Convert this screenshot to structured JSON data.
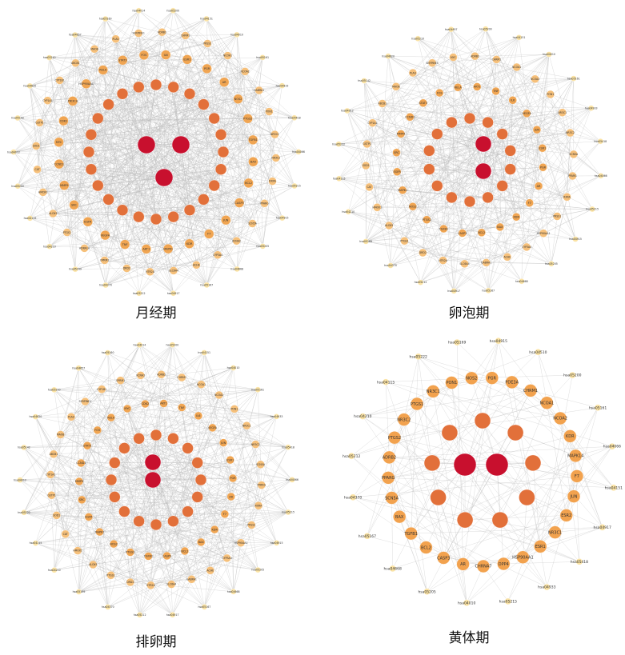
{
  "panels": [
    {
      "id": "menstrual",
      "caption": "月经期",
      "core_labels": [
        "",
        "",
        ""
      ],
      "mid_labels": [
        "",
        "",
        "",
        "",
        "",
        "",
        "",
        "",
        "",
        "",
        "",
        "",
        "",
        "",
        "",
        "",
        "",
        "",
        "",
        "",
        "",
        "",
        "",
        ""
      ],
      "ring2_labels": [
        "IL6",
        "ESR1",
        "PGR",
        "AR",
        "NOS2",
        "PTGS2",
        "TGFB1",
        "BAX",
        "BCL2",
        "CASP3",
        "JUN",
        "F7",
        "KDR",
        "MAPK1",
        "AKT1",
        "TNF",
        "VEGFA",
        "EGFR",
        "SRC",
        "MMP9",
        "CCND1",
        "MYC",
        "CDK2",
        "PIK3CA",
        "HSP90AA1",
        "RELA",
        "STAT3",
        "FOS"
      ],
      "ring3_labels": [
        "ADRB2",
        "CHRM1",
        "PRSS1",
        "NCOA1",
        "NCOA2",
        "GABRA1",
        "PON1",
        "NR3C1",
        "NR3C2",
        "RXRA",
        "PPARG",
        "SCN5A",
        "KCNH2",
        "CYP3A4",
        "ACHE",
        "SLC6A4",
        "HTR2A",
        "DRD2",
        "OPRM1",
        "ADRA1A",
        "PTGS1",
        "ALOX5",
        "HMOX1",
        "CAT",
        "SOD1",
        "GSTP1",
        "CYP1A1",
        "CYP1B1",
        "ABCB1",
        "MAOB",
        "PLAU",
        "SERPINE1"
      ],
      "outer_labels": [
        "hsa05200",
        "hsa04151",
        "hsa04010",
        "hsa05161",
        "hsa04933",
        "hsa05418",
        "hsa04066",
        "hsa05215",
        "hsa04915",
        "hsa05205",
        "hsa04668",
        "hsa05167",
        "hsa04917",
        "hsa05212",
        "hsa04370",
        "hsa05169",
        "hsa04210",
        "hsa04115",
        "hsa05222",
        "hsa04012",
        "hsa05142",
        "hsa04620",
        "hsa05210",
        "hsa04657",
        "hsa05160",
        "hsa04014"
      ]
    },
    {
      "id": "follicular",
      "caption": "卵泡期",
      "core_labels": [
        "",
        ""
      ],
      "mid_labels": [
        "",
        "",
        "",
        "",
        "",
        "",
        "",
        "",
        "",
        "",
        "",
        "",
        "",
        ""
      ],
      "ring2_labels": [
        "AKT1",
        "TNF",
        "IL6",
        "VEGFA",
        "JUN",
        "ESR1",
        "PGR",
        "AR",
        "F7",
        "KDR",
        "BAX",
        "BCL2",
        "CASP3",
        "TGFB1",
        "PTGS2",
        "NOS2",
        "MAPK1",
        "EGFR",
        "SRC",
        "MMP9",
        "CCND1",
        "STAT3",
        "FOS",
        "RELA"
      ],
      "ring3_labels": [
        "ADRB2",
        "CHRM1",
        "NCOA1",
        "NCOA2",
        "PON1",
        "NR3C1",
        "NR3C2",
        "SCN5A",
        "PPARG",
        "RXRA",
        "PRSS1",
        "HSP90AA1",
        "CYP3A4",
        "ACHE",
        "GABRA1",
        "SLC6A4",
        "HTR2A",
        "DRD2",
        "PTGS1",
        "ALOX5",
        "HMOX1",
        "CAT",
        "SOD1",
        "GSTP1",
        "CYP1A1",
        "ABCB1",
        "MAOB",
        "PLAU",
        "SERPINE1",
        "MYC"
      ],
      "outer_labels": [
        "hsa05200",
        "hsa04151",
        "hsa04010",
        "hsa05161",
        "hsa04933",
        "hsa05418",
        "hsa04066",
        "hsa05215",
        "hsa04915",
        "hsa05205",
        "hsa04668",
        "hsa05167",
        "hsa04917",
        "hsa05212",
        "hsa04370",
        "hsa05169",
        "hsa04210",
        "hsa04115",
        "hsa05222",
        "hsa04012",
        "hsa05142",
        "hsa04620",
        "hsa05210",
        "hsa04657"
      ]
    },
    {
      "id": "ovulatory",
      "caption": "排卵期",
      "core_labels": [
        "",
        ""
      ],
      "mid_labels": [
        "",
        "",
        "",
        "",
        "",
        "",
        "",
        "",
        "",
        "",
        "",
        "",
        "",
        "",
        "",
        ""
      ],
      "ring2_labels": [
        "AKT1",
        "TNF",
        "IL6",
        "VEGFA",
        "JUN",
        "ESR1",
        "PGR",
        "AR",
        "F7",
        "KDR",
        "BAX",
        "BCL2",
        "CASP3",
        "TGFB1",
        "PTGS2",
        "NOS2",
        "MAPK1",
        "EGFR",
        "SRC",
        "MMP9",
        "CCND1",
        "STAT3",
        "FOS",
        "RELA",
        "MYC",
        "CDK2"
      ],
      "ring3_labels": [
        "ADRB2",
        "CHRM1",
        "NCOA1",
        "NCOA2",
        "PON1",
        "NR3C1",
        "NR3C2",
        "SCN5A",
        "PPARG",
        "RXRA",
        "PRSS1",
        "HSP90AA1",
        "CYP3A4",
        "ACHE",
        "GABRA1",
        "SLC6A4",
        "HTR2A",
        "DRD2",
        "PTGS1",
        "ALOX5",
        "HMOX1",
        "CAT",
        "SOD1",
        "GSTP1",
        "CYP1A1",
        "ABCB1",
        "MAOB",
        "PLAU",
        "SERPINE1",
        "CYP1B1",
        "OPRM1",
        "KCNH2"
      ],
      "outer_labels": [
        "hsa05200",
        "hsa04151",
        "hsa04010",
        "hsa05161",
        "hsa04933",
        "hsa05418",
        "hsa04066",
        "hsa05215",
        "hsa04915",
        "hsa05205",
        "hsa04668",
        "hsa05167",
        "hsa04917",
        "hsa05212",
        "hsa04370",
        "hsa05169",
        "hsa04210",
        "hsa04115",
        "hsa05222",
        "hsa04012",
        "hsa05142",
        "hsa04620",
        "hsa05210",
        "hsa04657",
        "hsa05160",
        "hsa04014"
      ]
    },
    {
      "id": "luteal",
      "caption": "黄体期",
      "core_labels": [
        "",
        ""
      ],
      "mid_labels": [
        "",
        "",
        "",
        "",
        "",
        "",
        "",
        "",
        ""
      ],
      "ring2_labels": [
        "PGR",
        "PDE3A",
        "CHRM1",
        "NCOA1",
        "NCOA2",
        "KDR",
        "MAPK14",
        "F7",
        "JUN",
        "ESR2",
        "NR3C1",
        "ESR1",
        "HSP90AA1",
        "DPP4",
        "CHRNA7",
        "AR",
        "CASP3",
        "BCL2",
        "TGFB1",
        "BAX",
        "SCN5A",
        "PPARG",
        "ADRB2",
        "PTGS2",
        "NR3C2",
        "PTGS1",
        "NR3C1",
        "PON1",
        "NOS2"
      ],
      "ring3_labels": [],
      "outer_labels": [
        "hsa04915",
        "hsa04510",
        "hsa05200",
        "hsa05161",
        "hsa04066",
        "hsa04151",
        "hsa04917",
        "hsa05418",
        "hsa04933",
        "hsa05215",
        "hsa04010",
        "hsa05205",
        "hsa04668",
        "hsa05167",
        "hsa04370",
        "hsa05212",
        "hsa04210",
        "hsa04115",
        "hsa05222",
        "hsa05169"
      ]
    }
  ]
}
